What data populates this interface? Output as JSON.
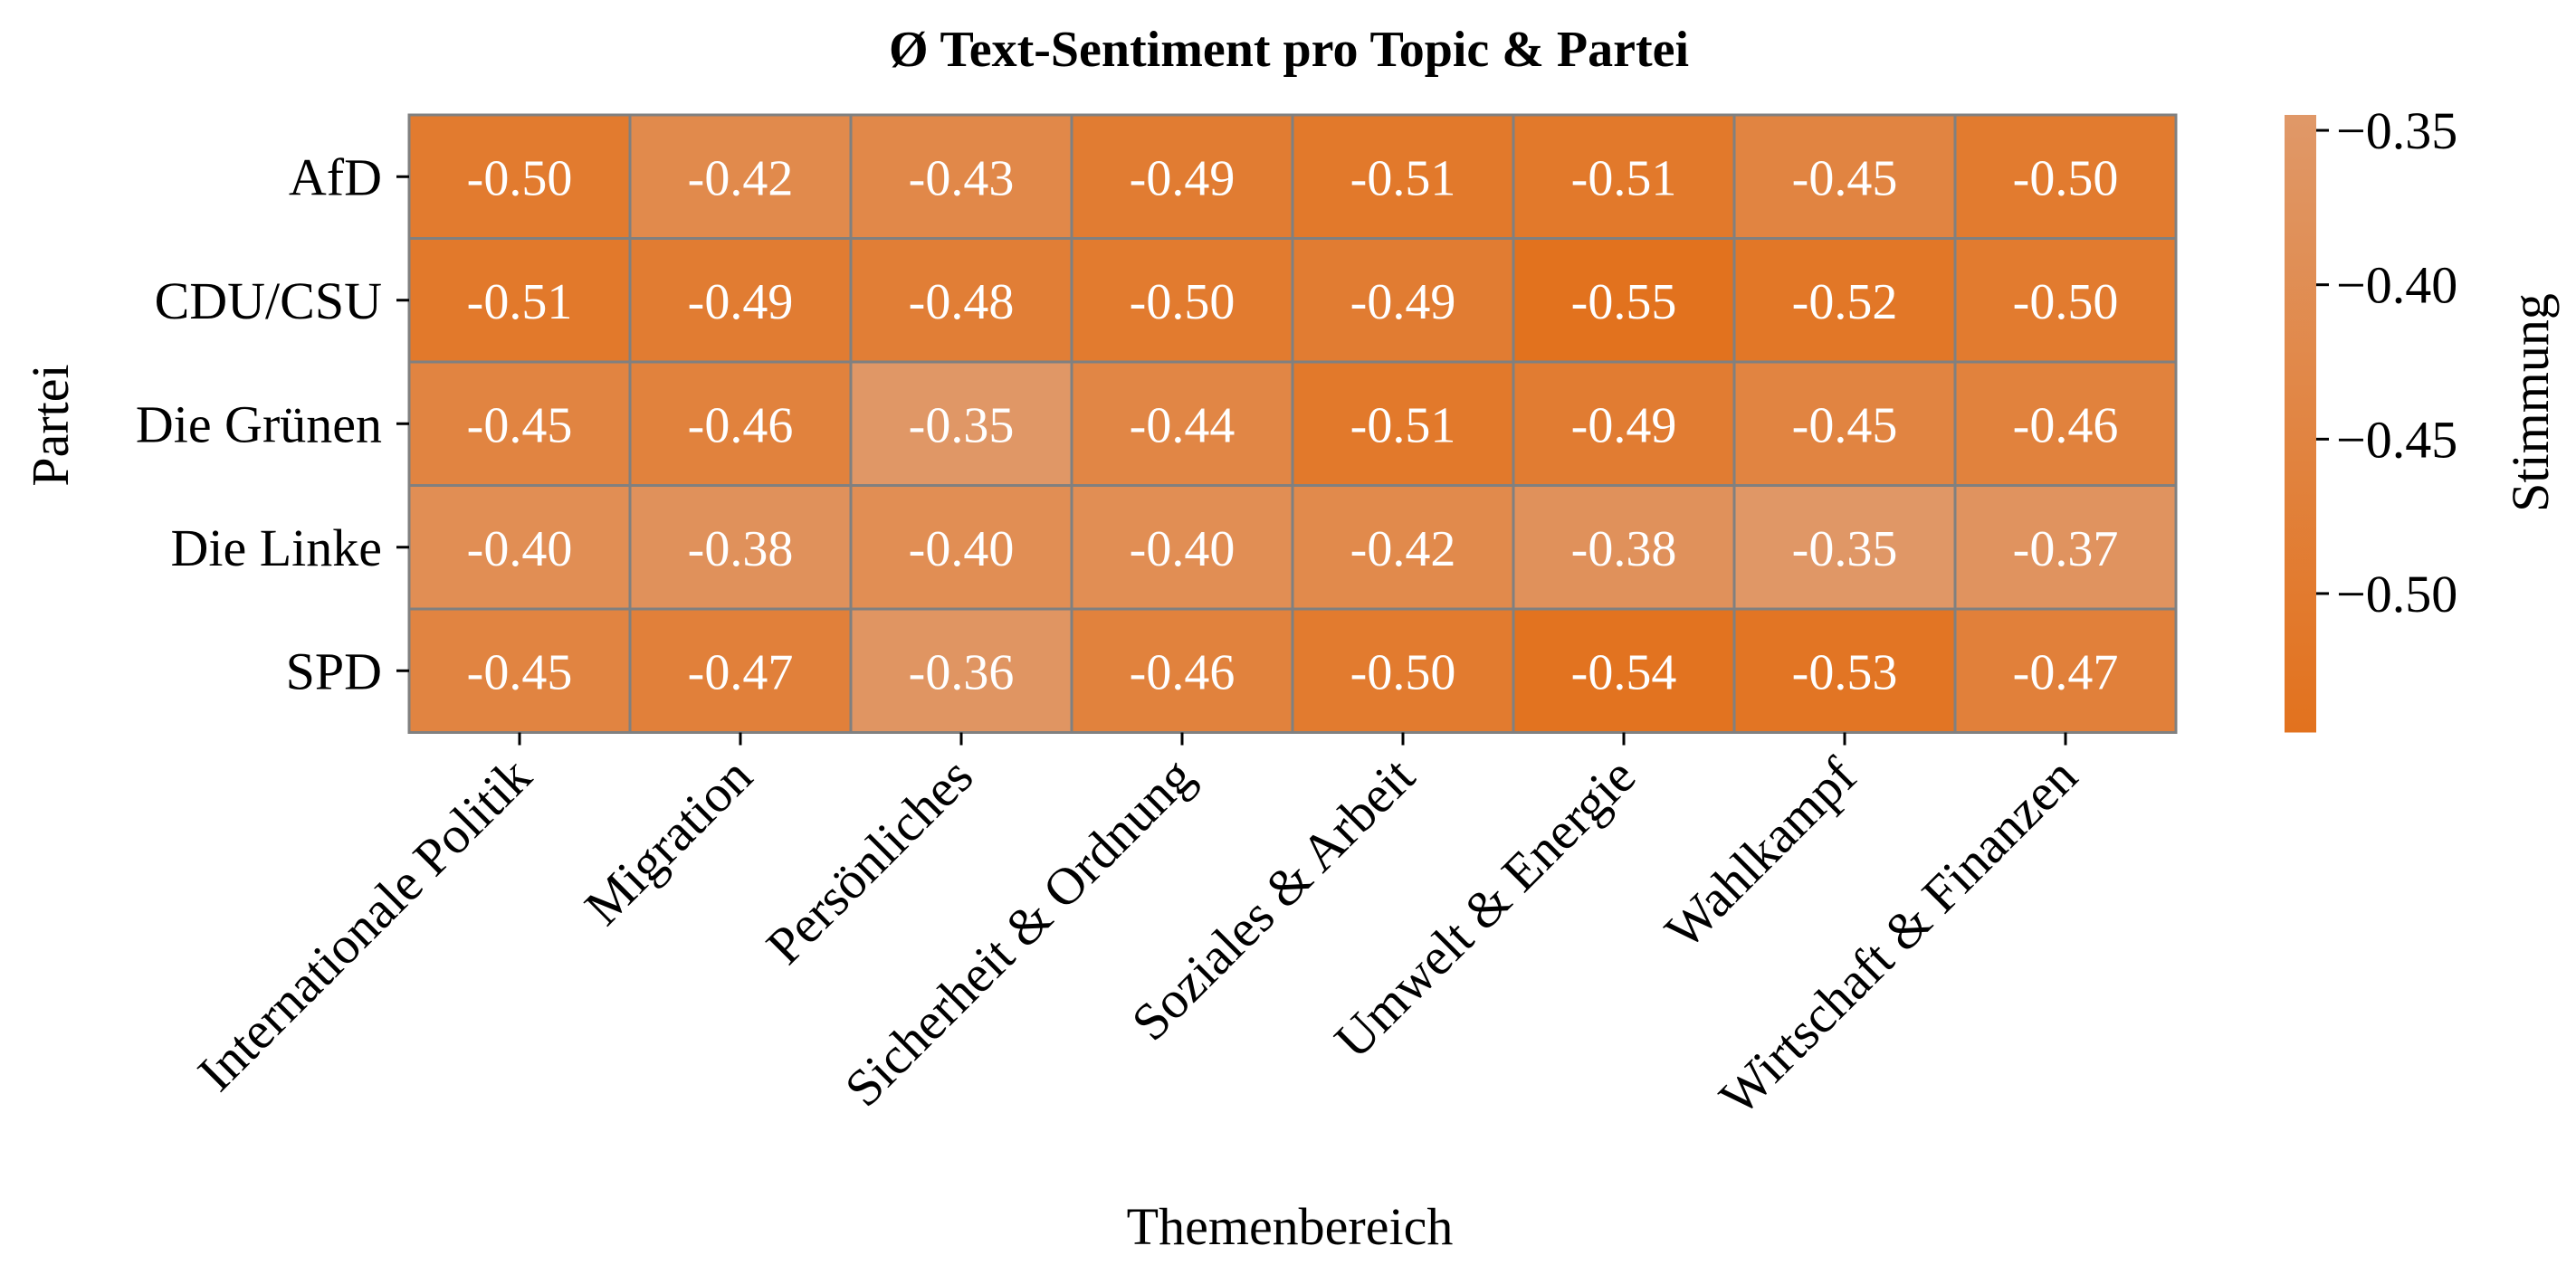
{
  "chart_data": {
    "type": "heatmap",
    "title": "Ø Text-Sentiment pro Topic & Partei",
    "xlabel": "Themenbereich",
    "ylabel": "Partei",
    "colorbar_label": "Stimmung",
    "x_categories": [
      "Internationale Politik",
      "Migration",
      "Persönliches",
      "Sicherheit & Ordnung",
      "Soziales & Arbeit",
      "Umwelt & Energie",
      "Wahlkampf",
      "Wirtschaft & Finanzen"
    ],
    "y_categories": [
      "AfD",
      "CDU/CSU",
      "Die Grünen",
      "Die Linke",
      "SPD"
    ],
    "values": [
      [
        -0.5,
        -0.42,
        -0.43,
        -0.49,
        -0.51,
        -0.51,
        -0.45,
        -0.5
      ],
      [
        -0.51,
        -0.49,
        -0.48,
        -0.5,
        -0.49,
        -0.55,
        -0.52,
        -0.5
      ],
      [
        -0.45,
        -0.46,
        -0.35,
        -0.44,
        -0.51,
        -0.49,
        -0.45,
        -0.46
      ],
      [
        -0.4,
        -0.38,
        -0.4,
        -0.4,
        -0.42,
        -0.38,
        -0.35,
        -0.37
      ],
      [
        -0.45,
        -0.47,
        -0.36,
        -0.46,
        -0.5,
        -0.54,
        -0.53,
        -0.47
      ]
    ],
    "cell_labels": [
      [
        "-0.50",
        "-0.42",
        "-0.43",
        "-0.49",
        "-0.51",
        "-0.51",
        "-0.45",
        "-0.50"
      ],
      [
        "-0.51",
        "-0.49",
        "-0.48",
        "-0.50",
        "-0.49",
        "-0.55",
        "-0.52",
        "-0.50"
      ],
      [
        "-0.45",
        "-0.46",
        "-0.35",
        "-0.44",
        "-0.51",
        "-0.49",
        "-0.45",
        "-0.46"
      ],
      [
        "-0.40",
        "-0.38",
        "-0.40",
        "-0.40",
        "-0.42",
        "-0.38",
        "-0.35",
        "-0.37"
      ],
      [
        "-0.45",
        "-0.47",
        "-0.36",
        "-0.46",
        "-0.50",
        "-0.54",
        "-0.53",
        "-0.47"
      ]
    ],
    "colorbar_ticks": [
      -0.35,
      -0.4,
      -0.45,
      -0.5
    ],
    "colorbar_tick_labels": [
      "−0.35",
      "−0.40",
      "−0.45",
      "−0.50"
    ],
    "color_range": [
      -0.545,
      -0.345
    ],
    "color_low": "#e2721e",
    "color_high": "#e09868",
    "cell_border_color": "#808080",
    "legend": "colorbar-right",
    "grid": false
  }
}
